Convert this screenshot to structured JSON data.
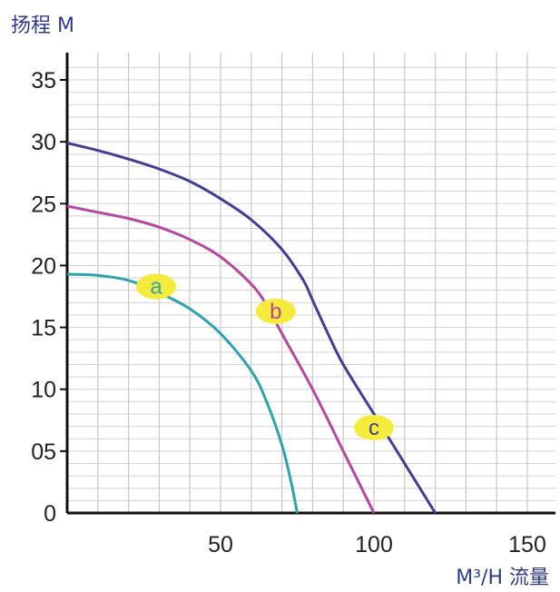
{
  "chart_data": {
    "type": "line",
    "ylabel": "扬程 M",
    "xlabel": "M³/H 流量",
    "xlim": [
      0,
      160
    ],
    "ylim": [
      0,
      36
    ],
    "x_ticks": [
      {
        "value": 50,
        "label": "50"
      },
      {
        "value": 100,
        "label": "100"
      },
      {
        "value": 150,
        "label": "150"
      }
    ],
    "y_ticks": [
      {
        "value": 0,
        "label": "0"
      },
      {
        "value": 5,
        "label": "05"
      },
      {
        "value": 10,
        "label": "10"
      },
      {
        "value": 15,
        "label": "15"
      },
      {
        "value": 20,
        "label": "20"
      },
      {
        "value": 25,
        "label": "25"
      },
      {
        "value": 30,
        "label": "30"
      },
      {
        "value": 35,
        "label": "35"
      }
    ],
    "grid": true,
    "series": [
      {
        "name": "a",
        "color": "#2ea3b0",
        "label_at": [
          29,
          18.3
        ],
        "points": [
          [
            0,
            19.3
          ],
          [
            10,
            19.2
          ],
          [
            20,
            18.8
          ],
          [
            30,
            17.8
          ],
          [
            40,
            16.5
          ],
          [
            50,
            14.5
          ],
          [
            60,
            11.5
          ],
          [
            65,
            9
          ],
          [
            70,
            5.5
          ],
          [
            73,
            2.5
          ],
          [
            75,
            0
          ]
        ]
      },
      {
        "name": "b",
        "color": "#b547a0",
        "label_at": [
          68,
          16.3
        ],
        "points": [
          [
            0,
            24.8
          ],
          [
            10,
            24.3
          ],
          [
            20,
            23.8
          ],
          [
            30,
            23.1
          ],
          [
            40,
            22.1
          ],
          [
            50,
            20.7
          ],
          [
            60,
            18.5
          ],
          [
            65,
            16.8
          ],
          [
            70,
            14.5
          ],
          [
            80,
            10
          ],
          [
            90,
            5
          ],
          [
            95,
            2.5
          ],
          [
            100,
            0
          ]
        ]
      },
      {
        "name": "c",
        "color": "#3f3f96",
        "label_at": [
          100,
          6.9
        ],
        "points": [
          [
            0,
            29.9
          ],
          [
            10,
            29.3
          ],
          [
            20,
            28.6
          ],
          [
            30,
            27.8
          ],
          [
            40,
            26.8
          ],
          [
            50,
            25.4
          ],
          [
            60,
            23.7
          ],
          [
            70,
            21.3
          ],
          [
            77,
            18.8
          ],
          [
            80,
            17.2
          ],
          [
            85,
            14.5
          ],
          [
            90,
            12
          ],
          [
            100,
            8
          ],
          [
            110,
            4
          ],
          [
            120,
            0
          ]
        ]
      }
    ]
  }
}
